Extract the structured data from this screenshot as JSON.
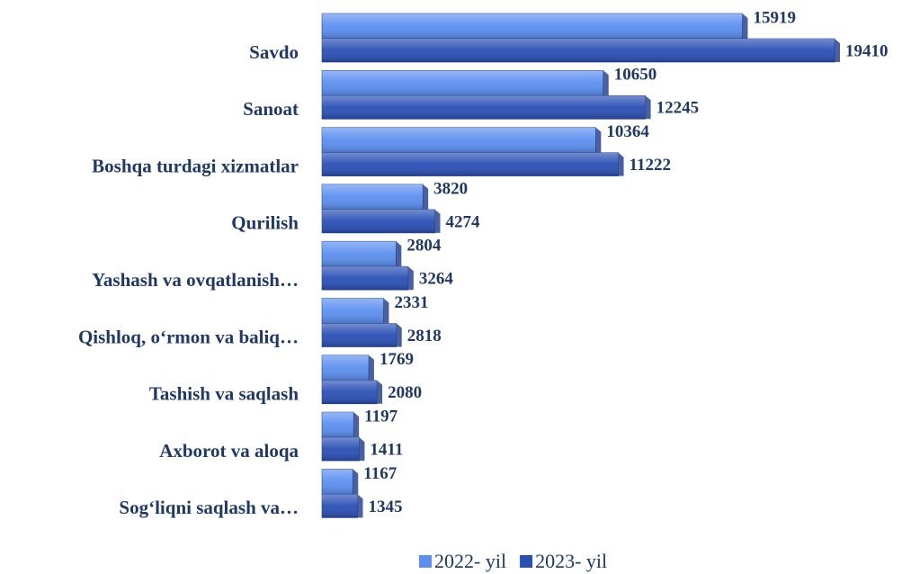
{
  "chart_data": {
    "type": "bar",
    "orientation": "horizontal",
    "categories": [
      "Savdo",
      "Sanoat",
      "Boshqa turdagi xizmatlar",
      "Qurilish",
      "Yashash va ovqatlanish…",
      "Qishloq, o‘rmon va baliq…",
      "Tashish va saqlash",
      "Axborot va aloqa",
      "Sog‘liqni saqlash va…"
    ],
    "series": [
      {
        "name": "2022- yil",
        "color": "#5b8ff0",
        "values": [
          15919,
          10650,
          10364,
          3820,
          2804,
          2331,
          1769,
          1197,
          1167
        ]
      },
      {
        "name": "2023- yil",
        "color": "#2a4fb5",
        "values": [
          19410,
          12245,
          11222,
          4274,
          3264,
          2818,
          2080,
          1411,
          1345
        ]
      }
    ],
    "legend": "bottom"
  }
}
